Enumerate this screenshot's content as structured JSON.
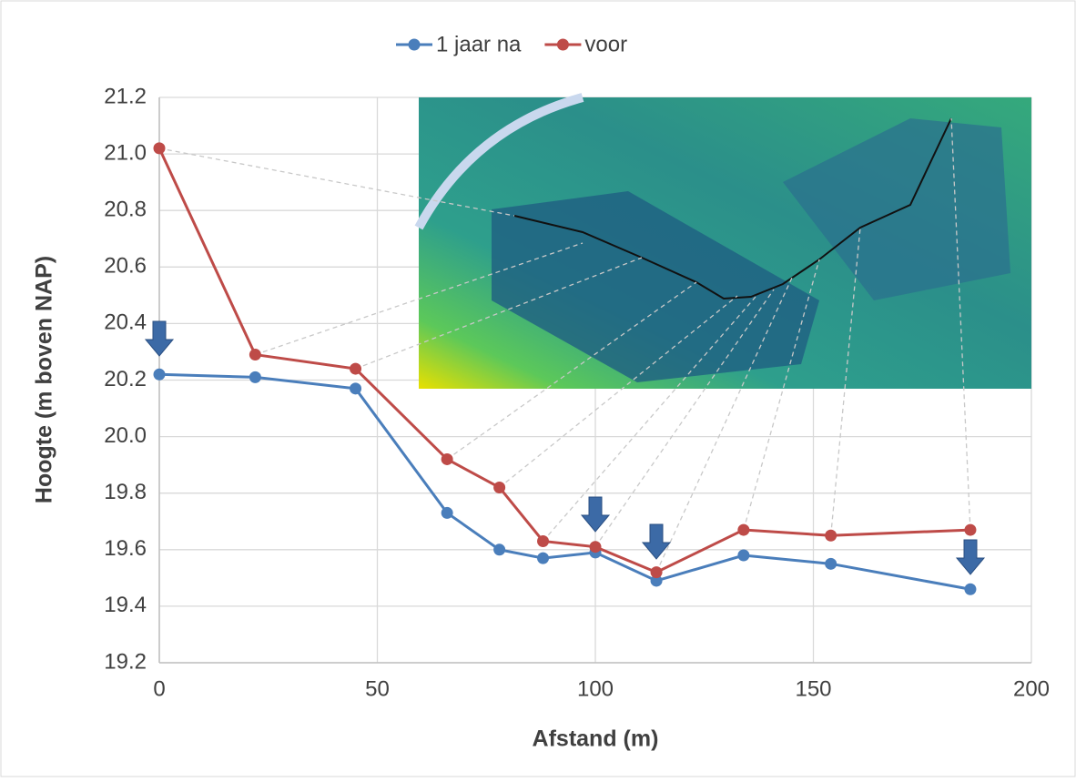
{
  "chart_data": {
    "type": "line",
    "x_label": "Afstand (m)",
    "y_label": "Hoogte (m boven NAP)",
    "x": [
      0,
      22,
      45,
      66,
      78,
      88,
      100,
      114,
      134,
      154,
      186
    ],
    "series": [
      {
        "name": "1 jaar na",
        "color": "#4a7ebb",
        "values": [
          20.22,
          20.21,
          20.17,
          19.73,
          19.6,
          19.57,
          19.59,
          19.49,
          19.58,
          19.55,
          19.46
        ]
      },
      {
        "name": "voor",
        "color": "#be4b48",
        "values": [
          21.02,
          20.29,
          20.24,
          19.92,
          19.82,
          19.63,
          19.61,
          19.52,
          19.67,
          19.65,
          19.67
        ]
      }
    ],
    "xlim": [
      0,
      200
    ],
    "xticks": [
      0,
      50,
      100,
      150,
      200
    ],
    "ylim": [
      19.2,
      21.2
    ],
    "yticks": [
      19.2,
      19.4,
      19.6,
      19.8,
      {
        "value": 20,
        "label": "20.0"
      },
      20.2,
      20.4,
      20.6,
      20.8,
      {
        "value": 21,
        "label": "21.0"
      },
      21.2
    ],
    "grid": true,
    "legend": "top"
  }
}
